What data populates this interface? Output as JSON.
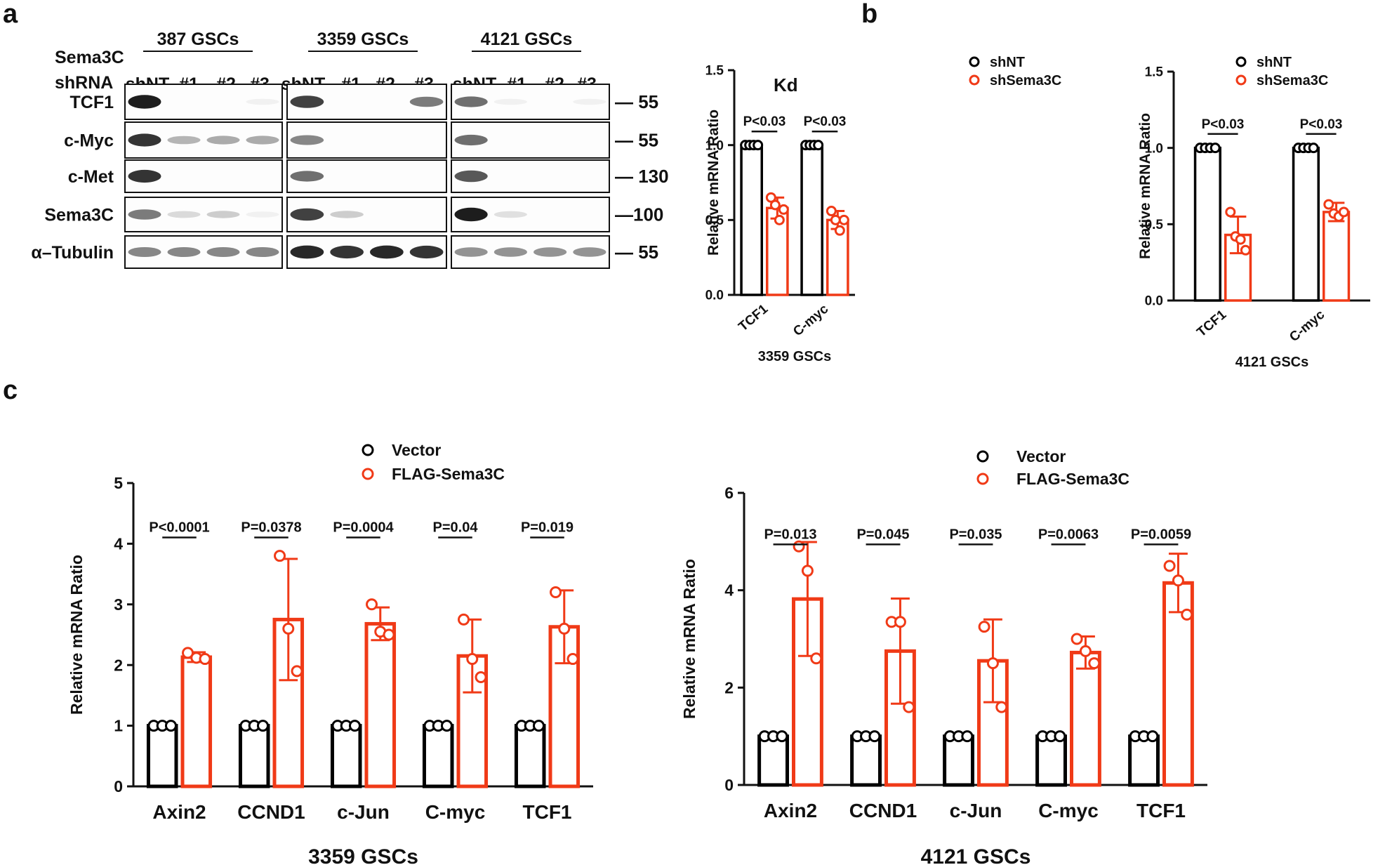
{
  "panel_labels": {
    "a": "a",
    "b": "b",
    "c": "c"
  },
  "colors": {
    "control": "#000000",
    "treated": "#f03a17"
  },
  "blot": {
    "row_header_1": "Sema3C",
    "row_header_2": "shRNA",
    "groups": [
      {
        "title": "387 GSCs",
        "lanes": [
          "shNT",
          "#1",
          "#2",
          "#3"
        ]
      },
      {
        "title": "3359 GSCs",
        "lanes": [
          "shNT",
          "#1",
          "#2",
          "#3"
        ]
      },
      {
        "title": "4121 GSCs",
        "lanes": [
          "shNT",
          "#1",
          "#2",
          "#3"
        ]
      }
    ],
    "kd_label": "Kd",
    "rows": [
      {
        "label": "TCF1",
        "marker": "— 55",
        "intensity": [
          [
            0.95,
            0,
            0,
            0.05
          ],
          [
            0.8,
            0,
            0,
            0.55
          ],
          [
            0.6,
            0.05,
            0,
            0.05
          ]
        ]
      },
      {
        "label": "c-Myc",
        "marker": "— 55",
        "intensity": [
          [
            0.85,
            0.3,
            0.35,
            0.35
          ],
          [
            0.5,
            0,
            0,
            0
          ],
          [
            0.6,
            0,
            0,
            0
          ]
        ]
      },
      {
        "label": "c-Met",
        "marker": "— 130",
        "intensity": [
          [
            0.85,
            0,
            0,
            0
          ],
          [
            0.6,
            0,
            0,
            0
          ],
          [
            0.7,
            0,
            0,
            0
          ]
        ]
      },
      {
        "label": "Sema3C",
        "marker": "—100",
        "intensity": [
          [
            0.55,
            0.15,
            0.2,
            0.05
          ],
          [
            0.8,
            0.2,
            0,
            0
          ],
          [
            0.95,
            0.12,
            0,
            0
          ]
        ]
      },
      {
        "label": "α–Tubulin",
        "marker": "— 55",
        "intensity": [
          [
            0.5,
            0.5,
            0.5,
            0.5
          ],
          [
            0.9,
            0.85,
            0.9,
            0.85
          ],
          [
            0.45,
            0.45,
            0.45,
            0.45
          ]
        ]
      }
    ]
  },
  "chart_data": [
    {
      "type": "bar",
      "panel": "b",
      "title": "3359 GSCs",
      "xlabel": "3359 GSCs",
      "ylabel": "Relative mRNA Ratio",
      "categories": [
        "TCF1",
        "C-myc"
      ],
      "ylim": [
        0,
        1.5
      ],
      "yticks": [
        "0.0",
        "0.5",
        "1.0",
        "1.5"
      ],
      "series": [
        {
          "name": "shNT",
          "values": [
            1.0,
            1.0
          ],
          "err": [
            0,
            0
          ],
          "points": [
            [
              1,
              1,
              1,
              1
            ],
            [
              1,
              1,
              1,
              1
            ]
          ]
        },
        {
          "name": "shSema3C",
          "values": [
            0.58,
            0.5
          ],
          "err": [
            0.07,
            0.06
          ],
          "points": [
            [
              0.65,
              0.6,
              0.5,
              0.57
            ],
            [
              0.56,
              0.5,
              0.43,
              0.5
            ]
          ]
        }
      ],
      "pvalues": [
        "P<0.03",
        "P<0.03"
      ]
    },
    {
      "type": "bar",
      "panel": "b",
      "title": "4121 GSCs",
      "xlabel": "4121 GSCs",
      "ylabel": "Relative mRNA Ratio",
      "categories": [
        "TCF1",
        "C-myc"
      ],
      "ylim": [
        0,
        1.5
      ],
      "yticks": [
        "0.0",
        "0.5",
        "1.0",
        "1.5"
      ],
      "series": [
        {
          "name": "shNT",
          "values": [
            1.0,
            1.0
          ],
          "err": [
            0,
            0
          ],
          "points": [
            [
              1,
              1,
              1,
              1
            ],
            [
              1,
              1,
              1,
              1
            ]
          ]
        },
        {
          "name": "shSema3C",
          "values": [
            0.43,
            0.58
          ],
          "err": [
            0.12,
            0.06
          ],
          "points": [
            [
              0.58,
              0.42,
              0.4,
              0.33
            ],
            [
              0.63,
              0.57,
              0.55,
              0.58
            ]
          ]
        }
      ],
      "pvalues": [
        "P<0.03",
        "P<0.03"
      ]
    },
    {
      "type": "bar",
      "panel": "c",
      "title": "3359 GSCs",
      "xlabel": "3359 GSCs",
      "ylabel": "Relative mRNA Ratio",
      "categories": [
        "Axin2",
        "CCND1",
        "c-Jun",
        "C-myc",
        "TCF1"
      ],
      "ylim": [
        0,
        5
      ],
      "yticks": [
        "0",
        "1",
        "2",
        "3",
        "4",
        "5"
      ],
      "series": [
        {
          "name": "Vector",
          "values": [
            1,
            1,
            1,
            1,
            1
          ],
          "err": [
            0,
            0,
            0,
            0,
            0
          ],
          "points": [
            [
              1,
              1,
              1
            ],
            [
              1,
              1,
              1
            ],
            [
              1,
              1,
              1
            ],
            [
              1,
              1,
              1
            ],
            [
              1,
              1,
              1
            ]
          ]
        },
        {
          "name": "FLAG-Sema3C",
          "values": [
            2.13,
            2.75,
            2.68,
            2.15,
            2.63
          ],
          "err": [
            0.08,
            1.0,
            0.27,
            0.6,
            0.6
          ],
          "points": [
            [
              2.2,
              2.12,
              2.1
            ],
            [
              3.8,
              2.6,
              1.9
            ],
            [
              3.0,
              2.55,
              2.5
            ],
            [
              2.75,
              2.1,
              1.8
            ],
            [
              3.2,
              2.6,
              2.1
            ]
          ]
        }
      ],
      "pvalues": [
        "P<0.0001",
        "P=0.0378",
        "P=0.0004",
        "P=0.04",
        "P=0.019"
      ]
    },
    {
      "type": "bar",
      "panel": "c",
      "title": "4121 GSCs",
      "xlabel": "4121 GSCs",
      "ylabel": "Relative mRNA Ratio",
      "categories": [
        "Axin2",
        "CCND1",
        "c-Jun",
        "C-myc",
        "TCF1"
      ],
      "ylim": [
        0,
        6
      ],
      "yticks": [
        "0",
        "2",
        "4",
        "6"
      ],
      "series": [
        {
          "name": "Vector",
          "values": [
            1,
            1,
            1,
            1,
            1
          ],
          "err": [
            0,
            0,
            0,
            0,
            0
          ],
          "points": [
            [
              1,
              1,
              1
            ],
            [
              1,
              1,
              1
            ],
            [
              1,
              1,
              1
            ],
            [
              1,
              1,
              1
            ],
            [
              1,
              1,
              1
            ]
          ]
        },
        {
          "name": "FLAG-Sema3C",
          "values": [
            3.82,
            2.75,
            2.55,
            2.72,
            4.15
          ],
          "err": [
            1.17,
            1.08,
            0.85,
            0.33,
            0.6
          ],
          "points": [
            [
              4.9,
              4.4,
              2.6
            ],
            [
              3.35,
              3.35,
              1.6
            ],
            [
              3.25,
              2.5,
              1.6
            ],
            [
              3.0,
              2.75,
              2.5
            ],
            [
              4.5,
              4.2,
              3.5
            ]
          ]
        }
      ],
      "pvalues": [
        "P=0.013",
        "P=0.045",
        "P=0.035",
        "P=0.0063",
        "P=0.0059"
      ]
    }
  ]
}
